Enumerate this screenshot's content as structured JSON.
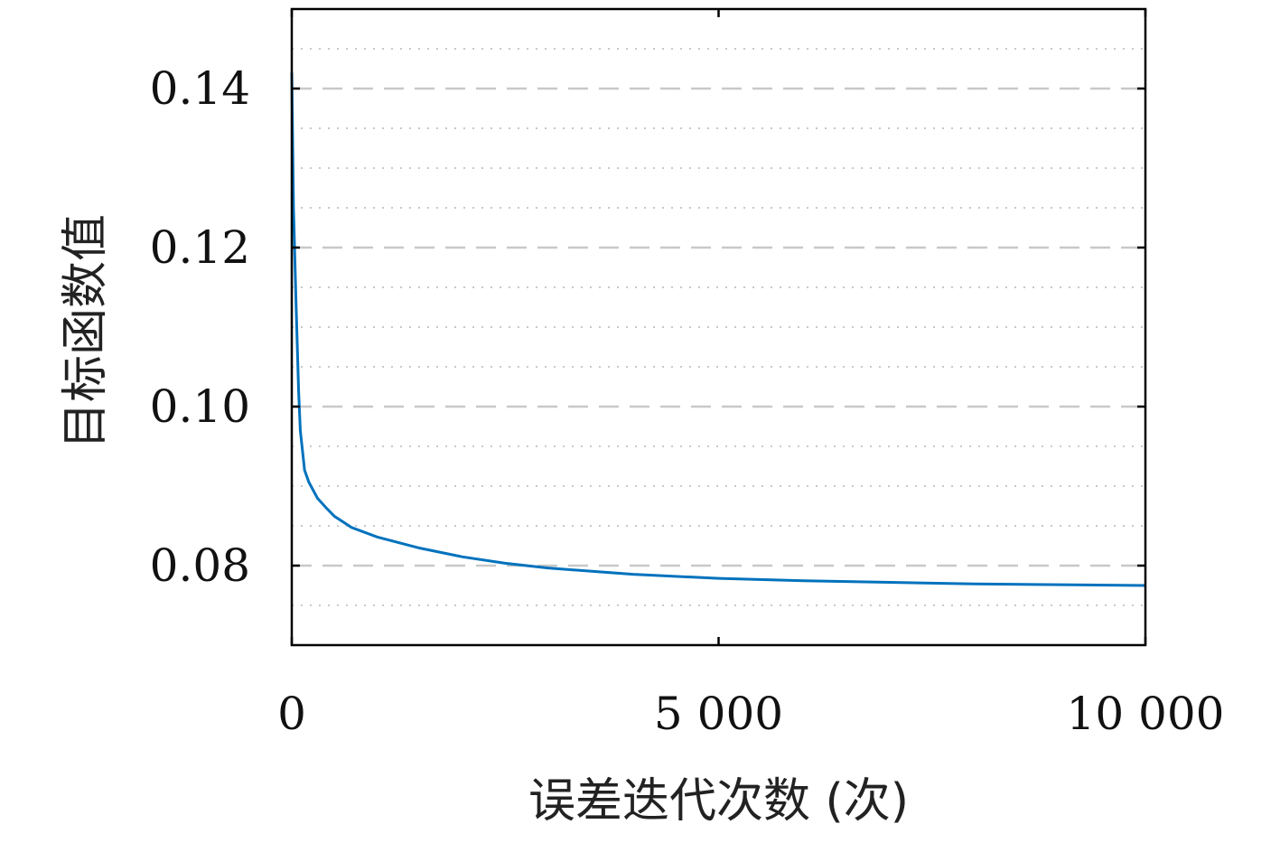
{
  "chart_data": {
    "type": "line",
    "title": "",
    "xlabel": "误差迭代次数 (次)",
    "ylabel": "目标函数值",
    "xlim": [
      0,
      10000
    ],
    "ylim": [
      0.07,
      0.15
    ],
    "x_ticks": [
      0,
      5000,
      10000
    ],
    "x_tick_labels": [
      "0",
      "5 000",
      "10 000"
    ],
    "y_ticks": [
      0.08,
      0.1,
      0.12,
      0.14
    ],
    "y_tick_labels": [
      "0.08",
      "0.10",
      "0.12",
      "0.14"
    ],
    "y_minor_ticks": [
      0.075,
      0.085,
      0.09,
      0.095,
      0.105,
      0.11,
      0.115,
      0.125,
      0.13,
      0.135,
      0.145
    ],
    "grid": {
      "major": "dashed",
      "minor": "dotted"
    },
    "colors": {
      "line": "#0072bd",
      "grid": "#c8c8c8",
      "axis": "#000000"
    },
    "series": [
      {
        "x": [
          0,
          20,
          50,
          80,
          100,
          150,
          200,
          300,
          400,
          500,
          700,
          1000,
          1500,
          2000,
          2500,
          3000,
          4000,
          5000,
          6000,
          7000,
          8000,
          9000,
          10000
        ],
        "y": [
          0.142,
          0.125,
          0.113,
          0.102,
          0.097,
          0.092,
          0.0905,
          0.0885,
          0.0873,
          0.0862,
          0.0848,
          0.0836,
          0.0822,
          0.0811,
          0.0803,
          0.0797,
          0.0789,
          0.0784,
          0.0781,
          0.0779,
          0.0777,
          0.0776,
          0.0775
        ]
      }
    ]
  }
}
